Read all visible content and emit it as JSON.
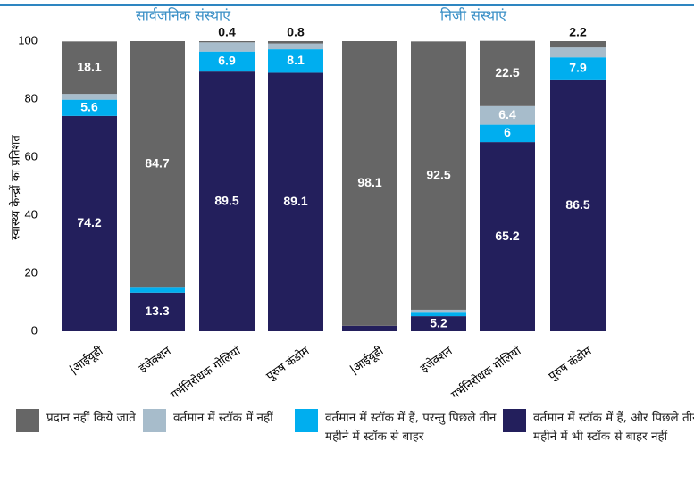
{
  "chart_data": [
    {
      "type": "stacked_bar",
      "title": "सार्वजनिक संस्थाएं",
      "y_label": "स्वास्थ्य केन्द्रों का प्रतिशत",
      "categories": [
        "|आईयूडी",
        "इंजेक्शन",
        "गर्भनिरोधक गोलियां",
        "पुरुष कंडोम"
      ],
      "ylim": [
        0,
        100
      ],
      "yticks": [
        0,
        20,
        40,
        60,
        80,
        100
      ],
      "series": [
        {
          "name": "वर्तमान में स्टॉक में हैं, और पिछले तीन महीने में भी स्टॉक से बाहर नहीं",
          "color": "#231f5c",
          "values": [
            74.2,
            13.3,
            89.5,
            89.1
          ]
        },
        {
          "name": "वर्तमान में स्टॉक में हैं, परन्तु पिछले तीन महीने में स्टॉक से बाहर",
          "color": "#00aeef",
          "values": [
            5.6,
            2.0,
            6.9,
            8.1
          ]
        },
        {
          "name": "वर्तमान में स्टॉक में नहीं",
          "color": "#a7bccb",
          "values": [
            2.0,
            null,
            3.2,
            2.0
          ]
        },
        {
          "name": "प्रदान नहीं किये जाते",
          "color": "#666666",
          "values": [
            18.1,
            84.7,
            0.4,
            0.8
          ]
        }
      ]
    },
    {
      "type": "stacked_bar",
      "title": "निजी संस्थाएं",
      "categories": [
        "|आईयूडी",
        "इंजेक्शन",
        "गर्भनिरोधक गोलियां",
        "पुरुष कंडोम"
      ],
      "ylim": [
        0,
        100
      ],
      "series": [
        {
          "name": "वर्तमान में स्टॉक में हैं, और पिछले तीन महीने में भी स्टॉक से बाहर नहीं",
          "color": "#231f5c",
          "values": [
            1.9,
            5.2,
            65.2,
            86.5
          ]
        },
        {
          "name": "वर्तमान में स्टॉक में हैं, परन्तु पिछले तीन महीने में स्टॉक से बाहर",
          "color": "#00aeef",
          "values": [
            null,
            1.5,
            6.0,
            7.9
          ]
        },
        {
          "name": "वर्तमान में स्टॉक में नहीं",
          "color": "#a7bccb",
          "values": [
            null,
            0.7,
            6.4,
            3.4
          ]
        },
        {
          "name": "प्रदान नहीं किये जाते",
          "color": "#666666",
          "values": [
            98.1,
            92.5,
            22.5,
            2.2
          ]
        }
      ]
    }
  ]
}
